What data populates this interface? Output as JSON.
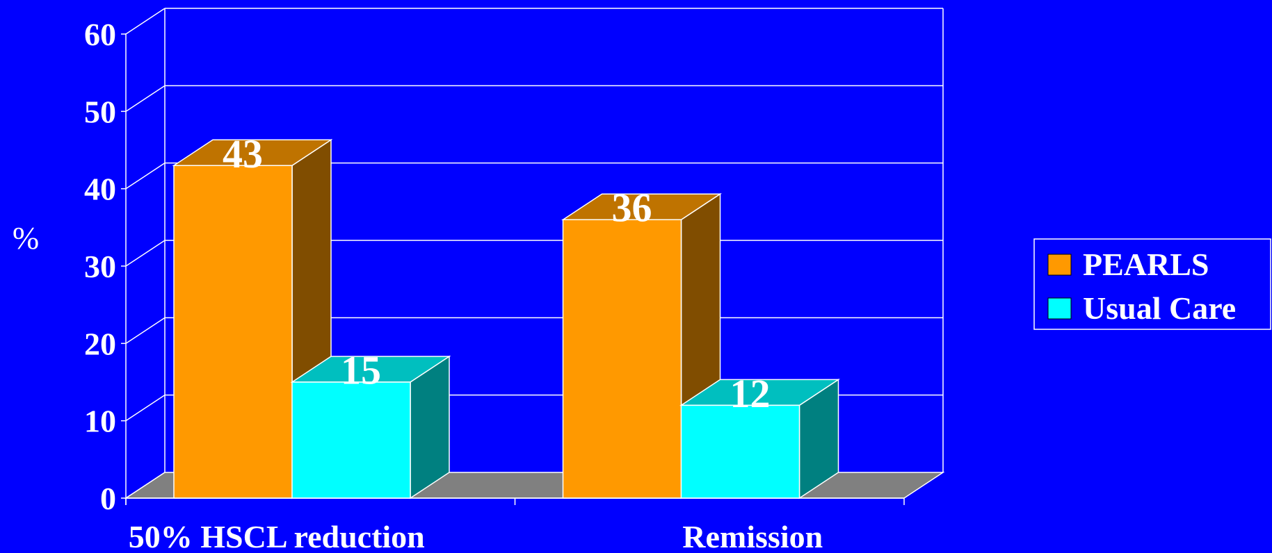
{
  "chart_data": {
    "type": "bar",
    "title": "",
    "xlabel": "",
    "ylabel": "%",
    "ylim": [
      0,
      60
    ],
    "yticks": [
      0,
      10,
      20,
      30,
      40,
      50,
      60
    ],
    "categories": [
      "50% HSCL reduction",
      "Remission"
    ],
    "series": [
      {
        "name": "PEARLS",
        "values": [
          43,
          36
        ],
        "color": "#ff9900"
      },
      {
        "name": "Usual Care",
        "values": [
          15,
          12
        ],
        "color": "#00ffff"
      }
    ],
    "data_labels": true,
    "grid": true,
    "legend_position": "right",
    "style": "3d-clustered-column",
    "background": "#0000ff"
  }
}
